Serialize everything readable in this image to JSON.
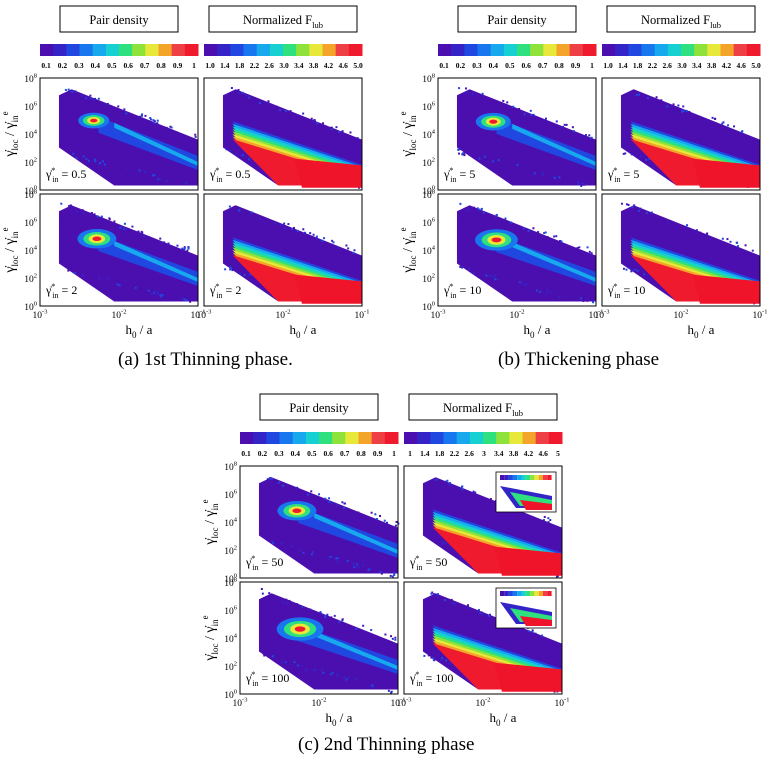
{
  "colors": {
    "pair_scale": [
      "#4b0fb0",
      "#3424c8",
      "#2048e0",
      "#1877ee",
      "#17a8ee",
      "#16d0d2",
      "#2ee07e",
      "#8ee23a",
      "#e8e83a",
      "#f5a42a",
      "#ee4044",
      "#f01a2e"
    ],
    "flub_scale": [
      "#4b0fb0",
      "#3424c8",
      "#2048e0",
      "#1877ee",
      "#17a8ee",
      "#16d0d2",
      "#2ee07e",
      "#8ee23a",
      "#e8e83a",
      "#f5a42a",
      "#ee4044",
      "#f01a2e"
    ],
    "red": "#f0142a"
  },
  "common": {
    "pair_title": "Pair density",
    "flub_title": "Normalized F",
    "flub_sub": "lub",
    "ylabel": "γ̇loc / γ̇ein",
    "xlabel": "h0 / a",
    "xticks": [
      "10-3",
      "10-2",
      "10-1"
    ],
    "yticks": [
      "100",
      "102",
      "104",
      "106",
      "108"
    ]
  },
  "panels": [
    {
      "id": "a",
      "caption": "(a) 1st Thinning phase.",
      "pair_ticks": [
        "0.1",
        "0.2",
        "0.3",
        "0.4",
        "0.5",
        "0.6",
        "0.7",
        "0.8",
        "0.9",
        "1"
      ],
      "flub_ticks": [
        "1.0",
        "1.4",
        "1.8",
        "2.2",
        "2.6",
        "3.0",
        "3.4",
        "3.8",
        "4.2",
        "4.6",
        "5.0"
      ],
      "rates": [
        "= 0.5",
        "= 2"
      ]
    },
    {
      "id": "b",
      "caption": "(b) Thickening phase",
      "pair_ticks": [
        "0.1",
        "0.2",
        "0.3",
        "0.4",
        "0.5",
        "0.6",
        "0.7",
        "0.8",
        "0.9",
        "1"
      ],
      "flub_ticks": [
        "1.0",
        "1.4",
        "1.8",
        "2.2",
        "2.6",
        "3.0",
        "3.4",
        "3.8",
        "4.2",
        "4.6",
        "5.0"
      ],
      "rates": [
        "= 5",
        "= 10"
      ]
    },
    {
      "id": "c",
      "caption": "(c) 2nd Thinning phase",
      "pair_ticks": [
        "0.1",
        "0.2",
        "0.3",
        "0.4",
        "0.5",
        "0.6",
        "0.7",
        "0.8",
        "0.9",
        "1"
      ],
      "flub_ticks": [
        "1",
        "1.4",
        "1.8",
        "2.2",
        "2.6",
        "3",
        "3.4",
        "3.8",
        "4.2",
        "4.6",
        "5"
      ],
      "rates": [
        "= 50",
        "= 100"
      ]
    }
  ]
}
